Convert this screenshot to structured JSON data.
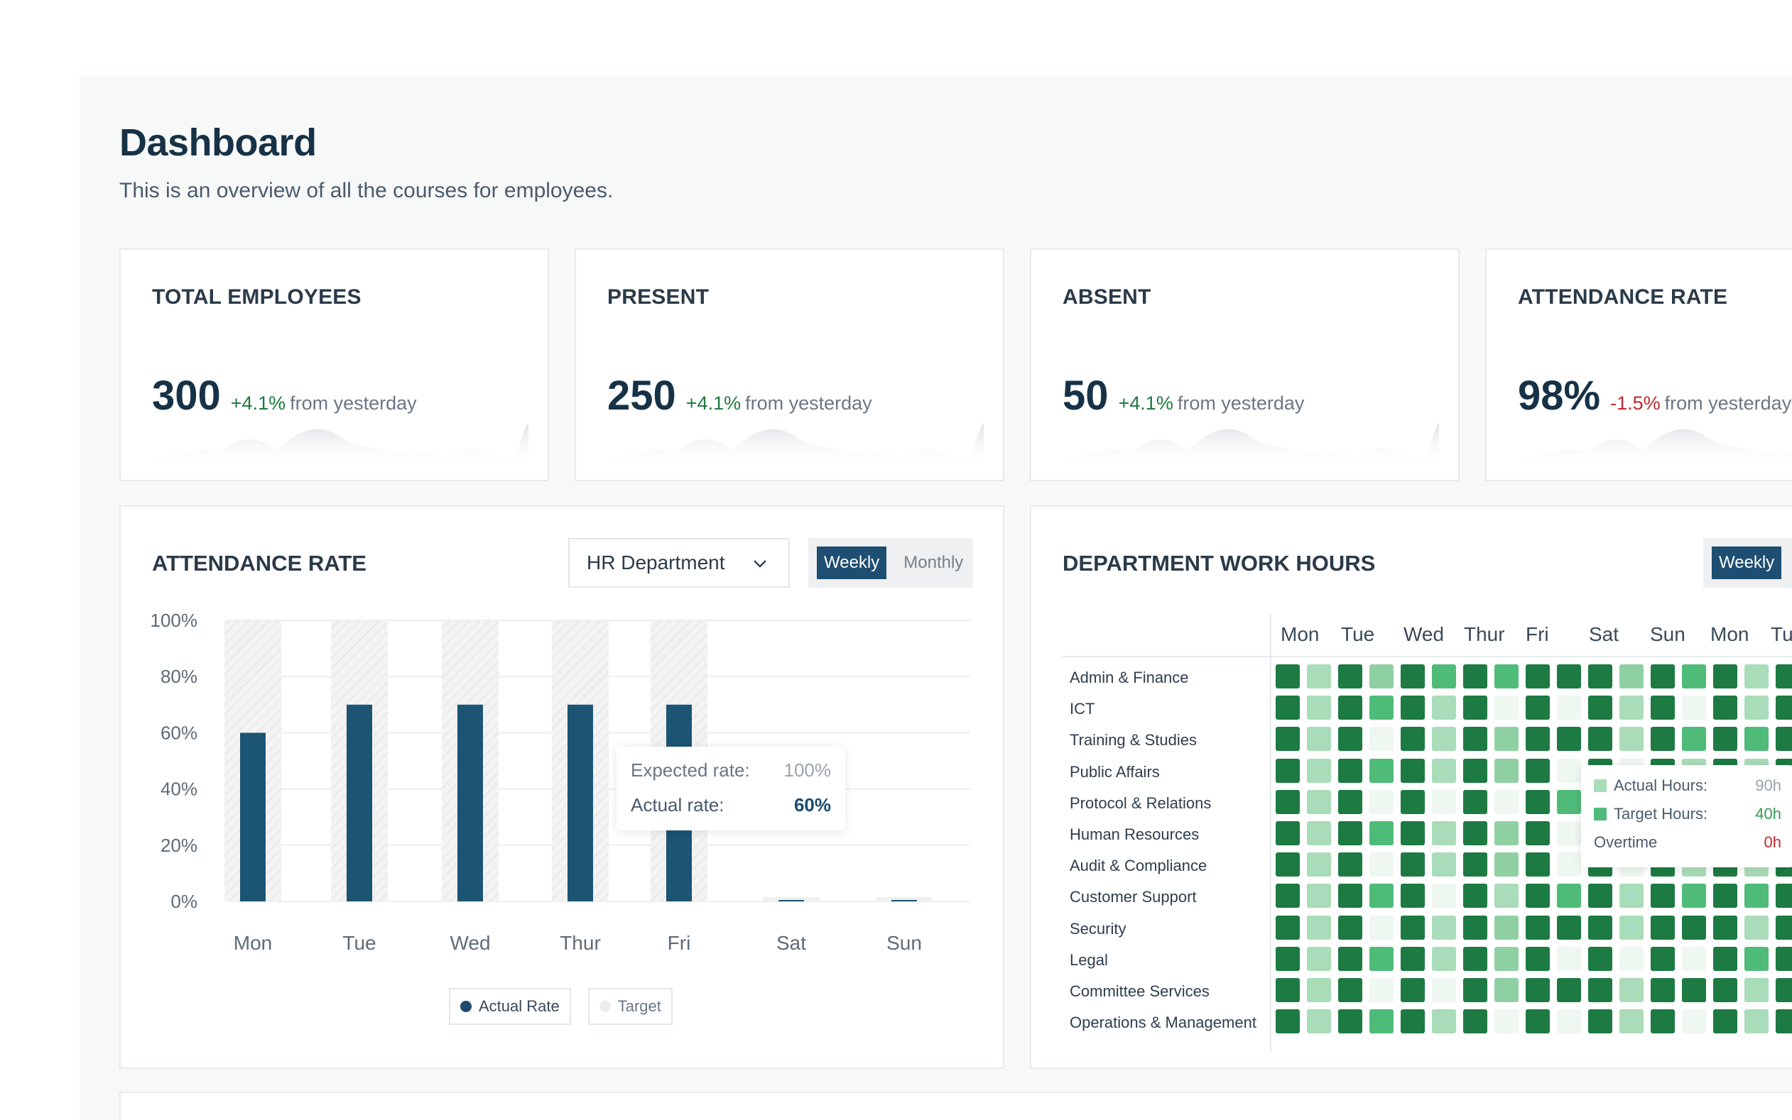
{
  "header": {
    "title": "Dashboard",
    "subtitle": "This is an overview of all the courses for employees."
  },
  "stats": [
    {
      "label": "TOTAL EMPLOYEES",
      "value": "300",
      "change": "+4.1%",
      "direction": "up",
      "suffix": "from yesterday"
    },
    {
      "label": "PRESENT",
      "value": "250",
      "change": "+4.1%",
      "direction": "up",
      "suffix": "from yesterday"
    },
    {
      "label": "ABSENT",
      "value": "50",
      "change": "+4.1%",
      "direction": "up",
      "suffix": "from yesterday"
    },
    {
      "label": "ATTENDANCE RATE",
      "value": "98%",
      "change": "-1.5%",
      "direction": "down",
      "suffix": "from yesterday"
    }
  ],
  "attendance": {
    "title": "ATTENDANCE RATE",
    "dropdown_value": "HR Department",
    "toggle": {
      "weekly": "Weekly",
      "monthly": "Monthly",
      "active": "weekly"
    },
    "tooltip": {
      "expected_label": "Expected rate:",
      "expected_value": "100%",
      "actual_label": "Actual rate:",
      "actual_value": "60%"
    },
    "legend": {
      "actual": "Actual Rate",
      "target": "Target"
    }
  },
  "chart_data": {
    "type": "bar",
    "categories": [
      "Mon",
      "Tue",
      "Wed",
      "Thur",
      "Fri",
      "Sat",
      "Sun"
    ],
    "series": [
      {
        "name": "Actual Rate",
        "values": [
          60,
          70,
          70,
          70,
          70,
          0,
          0
        ]
      },
      {
        "name": "Target",
        "values": [
          100,
          100,
          100,
          100,
          100,
          0,
          0
        ]
      }
    ],
    "yticks": [
      "0%",
      "20%",
      "40%",
      "60%",
      "80%",
      "100%"
    ],
    "ylim": [
      0,
      100
    ],
    "colors": {
      "actual": "#1c5473",
      "target": "#ececec"
    },
    "grid": true,
    "legend_position": "bottom"
  },
  "work_hours": {
    "title": "DEPARTMENT WORK HOURS",
    "toggle_active": "Weekly",
    "days": [
      "Mon",
      "Tue",
      "Wed",
      "Thur",
      "Fri",
      "Sat",
      "Sun",
      "Mon",
      "Tu"
    ],
    "departments": [
      "Admin & Finance",
      "ICT",
      "Training & Studies",
      "Public Affairs",
      "Protocol & Relations",
      "Human Resources",
      "Audit & Compliance",
      "Customer Support",
      "Security",
      "Legal",
      "Committee Services",
      "Operations & Management"
    ],
    "levels": [
      [
        4,
        1,
        4,
        2,
        4,
        3,
        4,
        3,
        4,
        4,
        4,
        2,
        4,
        3,
        4,
        1,
        4
      ],
      [
        4,
        1,
        4,
        3,
        4,
        1,
        4,
        0,
        4,
        0,
        4,
        1,
        4,
        0,
        4,
        1,
        4
      ],
      [
        4,
        1,
        4,
        0,
        4,
        1,
        4,
        2,
        4,
        4,
        4,
        1,
        4,
        3,
        4,
        3,
        4
      ],
      [
        4,
        1,
        4,
        3,
        4,
        1,
        4,
        2,
        4,
        0,
        4,
        0,
        4,
        1,
        4,
        1,
        4
      ],
      [
        4,
        1,
        4,
        0,
        4,
        0,
        4,
        0,
        4,
        3,
        4,
        1,
        4,
        0,
        4,
        1,
        4
      ],
      [
        4,
        1,
        4,
        3,
        4,
        1,
        4,
        2,
        4,
        0,
        4,
        1,
        4,
        3,
        4,
        1,
        4
      ],
      [
        4,
        1,
        4,
        0,
        4,
        1,
        4,
        2,
        4,
        0,
        4,
        0,
        4,
        1,
        4,
        1,
        4
      ],
      [
        4,
        1,
        4,
        3,
        4,
        0,
        4,
        1,
        4,
        3,
        4,
        1,
        4,
        3,
        4,
        3,
        4
      ],
      [
        4,
        1,
        4,
        0,
        4,
        1,
        4,
        2,
        4,
        4,
        4,
        1,
        4,
        4,
        4,
        1,
        4
      ],
      [
        4,
        1,
        4,
        3,
        4,
        1,
        4,
        2,
        4,
        0,
        4,
        0,
        4,
        0,
        4,
        3,
        4
      ],
      [
        4,
        1,
        4,
        0,
        4,
        0,
        4,
        2,
        4,
        4,
        4,
        1,
        4,
        4,
        4,
        1,
        4
      ],
      [
        4,
        1,
        4,
        3,
        4,
        1,
        4,
        0,
        4,
        0,
        4,
        1,
        4,
        0,
        4,
        1,
        4
      ]
    ],
    "palette": [
      "#eef7f0",
      "#a9dcb8",
      "#8fd0a3",
      "#4fbb78",
      "#1c7a42"
    ],
    "tooltip": {
      "actual_label": "Actual Hours:",
      "actual_value": "90h",
      "target_label": "Target Hours:",
      "target_value": "40h",
      "overtime_label": "Overtime",
      "overtime_value": "0h"
    }
  }
}
